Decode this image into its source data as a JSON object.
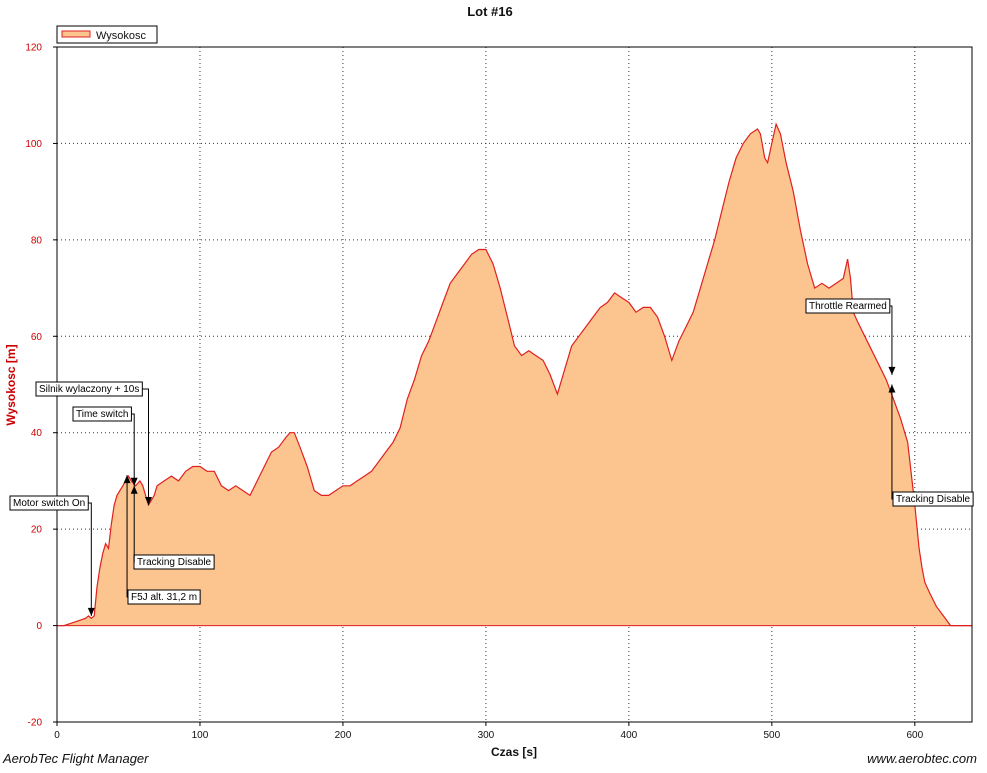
{
  "window": {
    "app_name": "AerobTec Flight Manager",
    "website": "www.aerobtec.com"
  },
  "chart_data": {
    "type": "area",
    "title": "Lot #16",
    "xlabel": "Czas [s]",
    "ylabel": "Wysokosc [m]",
    "xlim": [
      0,
      640
    ],
    "ylim": [
      -20,
      120
    ],
    "xticks": [
      0,
      100,
      200,
      300,
      400,
      500,
      600
    ],
    "yticks": [
      -20,
      0,
      20,
      40,
      60,
      80,
      100,
      120
    ],
    "grid": true,
    "legend": "top-left",
    "colors": {
      "line": "#e02020",
      "fill": "#fcc48e",
      "axis_text": "#cc0000"
    },
    "series": [
      {
        "name": "Wysokosc",
        "x": [
          0,
          5,
          10,
          15,
          20,
          22,
          24,
          26,
          28,
          30,
          32,
          34,
          36,
          38,
          40,
          42,
          44,
          46,
          48,
          50,
          52,
          55,
          58,
          60,
          62,
          64,
          66,
          68,
          70,
          75,
          80,
          85,
          90,
          95,
          100,
          105,
          110,
          115,
          120,
          125,
          130,
          135,
          140,
          145,
          150,
          155,
          160,
          163,
          166,
          170,
          175,
          180,
          185,
          190,
          195,
          200,
          205,
          210,
          215,
          220,
          225,
          230,
          235,
          240,
          245,
          250,
          255,
          260,
          265,
          270,
          275,
          280,
          285,
          290,
          295,
          300,
          305,
          310,
          315,
          320,
          325,
          330,
          335,
          340,
          345,
          350,
          355,
          360,
          365,
          370,
          375,
          380,
          385,
          390,
          395,
          400,
          405,
          410,
          415,
          420,
          425,
          430,
          435,
          440,
          445,
          450,
          455,
          460,
          465,
          470,
          475,
          480,
          485,
          490,
          492,
          495,
          497,
          500,
          503,
          506,
          510,
          515,
          520,
          525,
          530,
          535,
          540,
          545,
          550,
          553,
          555,
          557,
          560,
          565,
          570,
          575,
          580,
          585,
          590,
          595,
          600,
          603,
          605,
          607,
          610,
          615,
          620,
          625,
          630,
          635,
          640
        ],
        "values": [
          0,
          0,
          0.5,
          1,
          1.5,
          2,
          1.5,
          2,
          8,
          12,
          15,
          17,
          16,
          21,
          25,
          27,
          28,
          29,
          30,
          31,
          30,
          29,
          30,
          29,
          27,
          25,
          26,
          27,
          29,
          30,
          31,
          30,
          32,
          33,
          33,
          32,
          32,
          29,
          28,
          29,
          28,
          27,
          30,
          33,
          36,
          37,
          39,
          40,
          40,
          37,
          33,
          28,
          27,
          27,
          28,
          29,
          29,
          30,
          31,
          32,
          34,
          36,
          38,
          41,
          47,
          51,
          56,
          59,
          63,
          67,
          71,
          73,
          75,
          77,
          78,
          78,
          75,
          70,
          64,
          58,
          56,
          57,
          56,
          55,
          52,
          48,
          53,
          58,
          60,
          62,
          64,
          66,
          67,
          69,
          68,
          67,
          65,
          66,
          66,
          64,
          60,
          55,
          59,
          62,
          65,
          70,
          75,
          80,
          86,
          92,
          97,
          100,
          102,
          103,
          102,
          97,
          96,
          100,
          104,
          102,
          96,
          90,
          82,
          75,
          70,
          71,
          70,
          71,
          72,
          76,
          72,
          65,
          63,
          60,
          57,
          54,
          51,
          47,
          43,
          38,
          25,
          16,
          12,
          9,
          7,
          4,
          2,
          0,
          0,
          0,
          0
        ]
      }
    ],
    "annotations": [
      {
        "label": "Motor switch On",
        "x": 24,
        "y": 2,
        "dir": "down"
      },
      {
        "label": "Silnik wylaczony + 10s",
        "x": 64,
        "y": 25,
        "dir": "down"
      },
      {
        "label": "Time switch",
        "x": 54,
        "y": 29,
        "dir": "down"
      },
      {
        "label": "F5J alt. 31,2 m",
        "x": 49,
        "y": 31.2,
        "dir": "up"
      },
      {
        "label": "Tracking Disable",
        "x": 54,
        "y": 29,
        "dir": "up"
      },
      {
        "label": "Throttle Rearmed",
        "x": 584,
        "y": 52,
        "dir": "down"
      },
      {
        "label": "Tracking Disable",
        "x": 584,
        "y": 50,
        "dir": "up"
      }
    ]
  }
}
